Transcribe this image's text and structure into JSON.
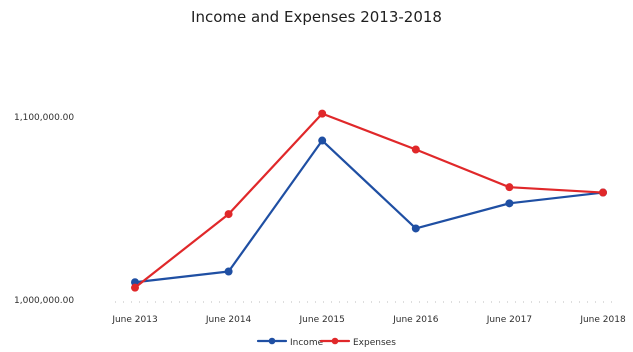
{
  "chart_data": {
    "type": "line",
    "title": "Income and Expenses 2013-2018",
    "xlabel": "",
    "ylabel": "",
    "categories": [
      "June 2013",
      "June 2014",
      "June 2015",
      "June 2016",
      "June 2017",
      "June 2018"
    ],
    "y_tick_labels": [
      "1,100,000.00",
      "1,000,000.00"
    ],
    "series": [
      {
        "name": "Income",
        "color": "#1f4fa3",
        "values": [
          1005000,
          1011000,
          1084000,
          1035000,
          1049000,
          1055000
        ]
      },
      {
        "name": "Expenses",
        "color": "#e0282a",
        "values": [
          1002000,
          1043000,
          1099000,
          1079000,
          1058000,
          1055000
        ]
      }
    ],
    "ylim": [
      994000,
      1130000
    ],
    "grid": false,
    "legend": "bottom-center"
  }
}
